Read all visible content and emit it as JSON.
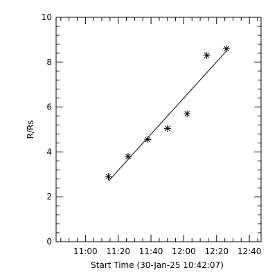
{
  "chart_data": {
    "type": "scatter",
    "title": "",
    "xlabel": "Start Time (30-Jan-25 10:42:07)",
    "ylabel": "R/Rs",
    "x_unit": "minutes past 10:42:07",
    "xlim": [
      0,
      125
    ],
    "ylim": [
      0,
      10
    ],
    "x_ticks": [
      {
        "value": 17.88,
        "label": "11:00"
      },
      {
        "value": 37.88,
        "label": "11:20"
      },
      {
        "value": 57.88,
        "label": "11:40"
      },
      {
        "value": 77.88,
        "label": "12:00"
      },
      {
        "value": 97.88,
        "label": "12:20"
      },
      {
        "value": 117.88,
        "label": "12:40"
      }
    ],
    "y_ticks": [
      0,
      2,
      4,
      6,
      8,
      10
    ],
    "grid": false,
    "series": [
      {
        "marker": "asterisk",
        "x": [
          31.9,
          43.9,
          55.9,
          67.9,
          79.9,
          91.9,
          103.9
        ],
        "y": [
          2.9,
          3.8,
          4.55,
          5.05,
          5.7,
          8.3,
          8.6
        ]
      }
    ],
    "fit_line": {
      "x": [
        31.9,
        103.9
      ],
      "y": [
        2.7,
        8.5
      ]
    }
  }
}
